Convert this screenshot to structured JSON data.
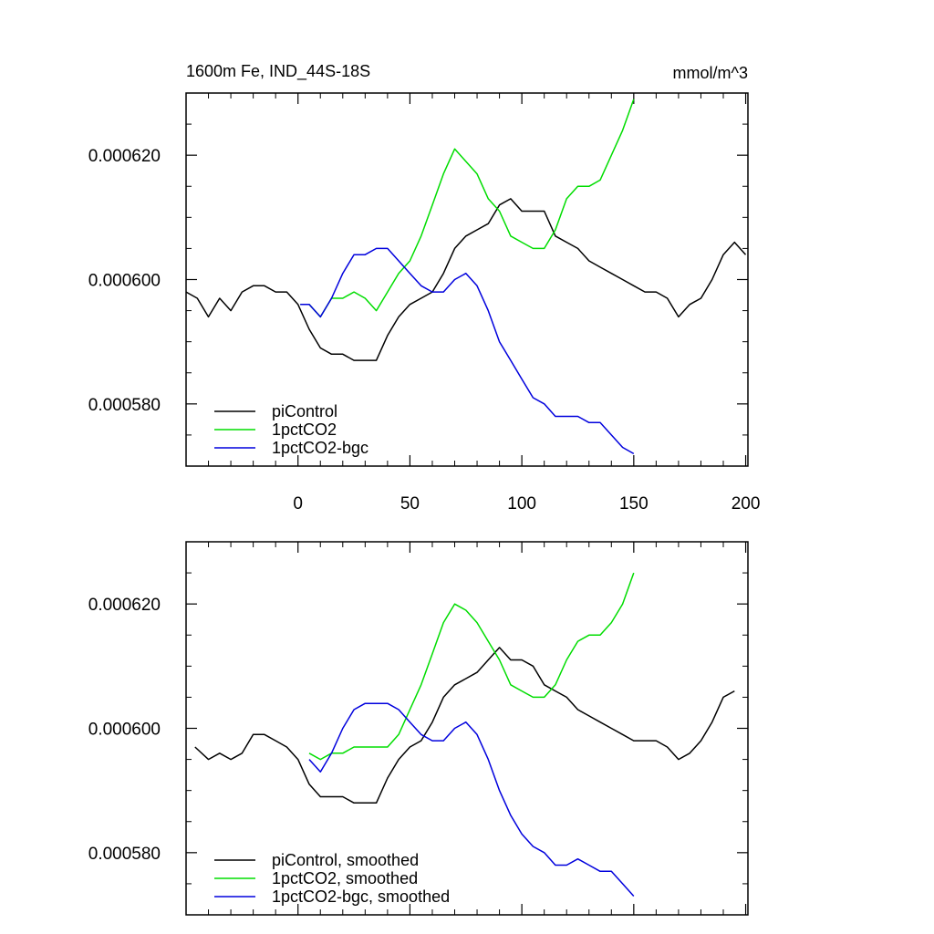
{
  "chart_data": [
    {
      "type": "line",
      "title": "1600m Fe, IND_44S-18S",
      "units": "mmol/m^3",
      "xlim": [
        -50,
        201
      ],
      "ylim": [
        0.00057,
        0.00063
      ],
      "x_ticks": [
        0,
        50,
        100,
        150,
        200
      ],
      "y_ticks": [
        "0.000580",
        "0.000600",
        "0.000620"
      ],
      "y_tick_values": [
        0.00058,
        0.0006,
        0.00062
      ],
      "legend_position": "bottom-left",
      "series": [
        {
          "name": "piControl",
          "color": "#000000",
          "x": [
            -50,
            -45,
            -40,
            -35,
            -30,
            -25,
            -20,
            -15,
            -10,
            -5,
            0,
            5,
            10,
            15,
            20,
            25,
            30,
            35,
            40,
            45,
            50,
            55,
            60,
            65,
            70,
            75,
            80,
            85,
            90,
            95,
            100,
            105,
            110,
            115,
            120,
            125,
            130,
            135,
            140,
            145,
            150,
            155,
            160,
            165,
            170,
            175,
            180,
            185,
            190,
            195,
            200
          ],
          "y": [
            0.000598,
            0.000597,
            0.000594,
            0.000597,
            0.000595,
            0.000598,
            0.000599,
            0.000599,
            0.000598,
            0.000598,
            0.000596,
            0.000592,
            0.000589,
            0.000588,
            0.000588,
            0.000587,
            0.000587,
            0.000587,
            0.000591,
            0.000594,
            0.000596,
            0.000597,
            0.000598,
            0.000601,
            0.000605,
            0.000607,
            0.000608,
            0.000609,
            0.000612,
            0.000613,
            0.000611,
            0.000611,
            0.000611,
            0.000607,
            0.000606,
            0.000605,
            0.000603,
            0.000602,
            0.000601,
            0.0006,
            0.000599,
            0.000598,
            0.000598,
            0.000597,
            0.000594,
            0.000596,
            0.000597,
            0.0006,
            0.000604,
            0.000606,
            0.000604
          ]
        },
        {
          "name": "1pctCO2",
          "color": "#00dd00",
          "x": [
            1,
            5,
            10,
            15,
            20,
            25,
            30,
            35,
            40,
            45,
            50,
            55,
            60,
            65,
            70,
            75,
            80,
            85,
            90,
            95,
            100,
            105,
            110,
            115,
            120,
            125,
            130,
            135,
            140,
            145,
            150
          ],
          "y": [
            0.000596,
            0.000596,
            0.000594,
            0.000597,
            0.000597,
            0.000598,
            0.000597,
            0.000595,
            0.000598,
            0.000601,
            0.000603,
            0.000607,
            0.000612,
            0.000617,
            0.000621,
            0.000619,
            0.000617,
            0.000613,
            0.000611,
            0.000607,
            0.000606,
            0.000605,
            0.000605,
            0.000608,
            0.000613,
            0.000615,
            0.000615,
            0.000616,
            0.00062,
            0.000624,
            0.000629
          ]
        },
        {
          "name": "1pctCO2-bgc",
          "color": "#0000dd",
          "x": [
            1,
            5,
            10,
            15,
            20,
            25,
            30,
            35,
            40,
            45,
            50,
            55,
            60,
            65,
            70,
            75,
            80,
            85,
            90,
            95,
            100,
            105,
            110,
            115,
            120,
            125,
            130,
            135,
            140,
            145,
            150
          ],
          "y": [
            0.000596,
            0.000596,
            0.000594,
            0.000597,
            0.000601,
            0.000604,
            0.000604,
            0.000605,
            0.000605,
            0.000603,
            0.000601,
            0.000599,
            0.000598,
            0.000598,
            0.0006,
            0.000601,
            0.000599,
            0.000595,
            0.00059,
            0.000587,
            0.000584,
            0.000581,
            0.00058,
            0.000578,
            0.000578,
            0.000578,
            0.000577,
            0.000577,
            0.000575,
            0.000573,
            0.000572
          ]
        }
      ]
    },
    {
      "type": "line",
      "title": "",
      "xlim": [
        -50,
        201
      ],
      "ylim": [
        0.00057,
        0.00063
      ],
      "x_ticks": [
        0,
        50,
        100,
        150,
        200
      ],
      "y_ticks": [
        "0.000580",
        "0.000600",
        "0.000620"
      ],
      "y_tick_values": [
        0.00058,
        0.0006,
        0.00062
      ],
      "legend_position": "bottom-left",
      "series": [
        {
          "name": "piControl, smoothed",
          "color": "#000000",
          "x": [
            -46,
            -40,
            -35,
            -30,
            -25,
            -20,
            -15,
            -10,
            -5,
            0,
            5,
            10,
            15,
            20,
            25,
            30,
            35,
            40,
            45,
            50,
            55,
            60,
            65,
            70,
            75,
            80,
            85,
            90,
            95,
            100,
            105,
            110,
            115,
            120,
            125,
            130,
            135,
            140,
            145,
            150,
            155,
            160,
            165,
            170,
            175,
            180,
            185,
            190,
            195
          ],
          "y": [
            0.000597,
            0.000595,
            0.000596,
            0.000595,
            0.000596,
            0.000599,
            0.000599,
            0.000598,
            0.000597,
            0.000595,
            0.000591,
            0.000589,
            0.000589,
            0.000589,
            0.000588,
            0.000588,
            0.000588,
            0.000592,
            0.000595,
            0.000597,
            0.000598,
            0.000601,
            0.000605,
            0.000607,
            0.000608,
            0.000609,
            0.000611,
            0.000613,
            0.000611,
            0.000611,
            0.00061,
            0.000607,
            0.000606,
            0.000605,
            0.000603,
            0.000602,
            0.000601,
            0.0006,
            0.000599,
            0.000598,
            0.000598,
            0.000598,
            0.000597,
            0.000595,
            0.000596,
            0.000598,
            0.000601,
            0.000605,
            0.000606
          ]
        },
        {
          "name": "1pctCO2, smoothed",
          "color": "#00dd00",
          "x": [
            5,
            10,
            15,
            20,
            25,
            30,
            35,
            40,
            45,
            50,
            55,
            60,
            65,
            70,
            75,
            80,
            85,
            90,
            95,
            100,
            105,
            110,
            115,
            120,
            125,
            130,
            135,
            140,
            145,
            150
          ],
          "y": [
            0.000596,
            0.000595,
            0.000596,
            0.000596,
            0.000597,
            0.000597,
            0.000597,
            0.000597,
            0.000599,
            0.000603,
            0.000607,
            0.000612,
            0.000617,
            0.00062,
            0.000619,
            0.000617,
            0.000614,
            0.000611,
            0.000607,
            0.000606,
            0.000605,
            0.000605,
            0.000607,
            0.000611,
            0.000614,
            0.000615,
            0.000615,
            0.000617,
            0.00062,
            0.000625
          ]
        },
        {
          "name": "1pctCO2-bgc, smoothed",
          "color": "#0000dd",
          "x": [
            5,
            10,
            15,
            20,
            25,
            30,
            35,
            40,
            45,
            50,
            55,
            60,
            65,
            70,
            75,
            80,
            85,
            90,
            95,
            100,
            105,
            110,
            115,
            120,
            125,
            130,
            135,
            140,
            145,
            150
          ],
          "y": [
            0.000595,
            0.000593,
            0.000596,
            0.0006,
            0.000603,
            0.000604,
            0.000604,
            0.000604,
            0.000603,
            0.000601,
            0.000599,
            0.000598,
            0.000598,
            0.0006,
            0.000601,
            0.000599,
            0.000595,
            0.00059,
            0.000586,
            0.000583,
            0.000581,
            0.00058,
            0.000578,
            0.000578,
            0.000579,
            0.000578,
            0.000577,
            0.000577,
            0.000575,
            0.000573
          ]
        }
      ]
    }
  ]
}
